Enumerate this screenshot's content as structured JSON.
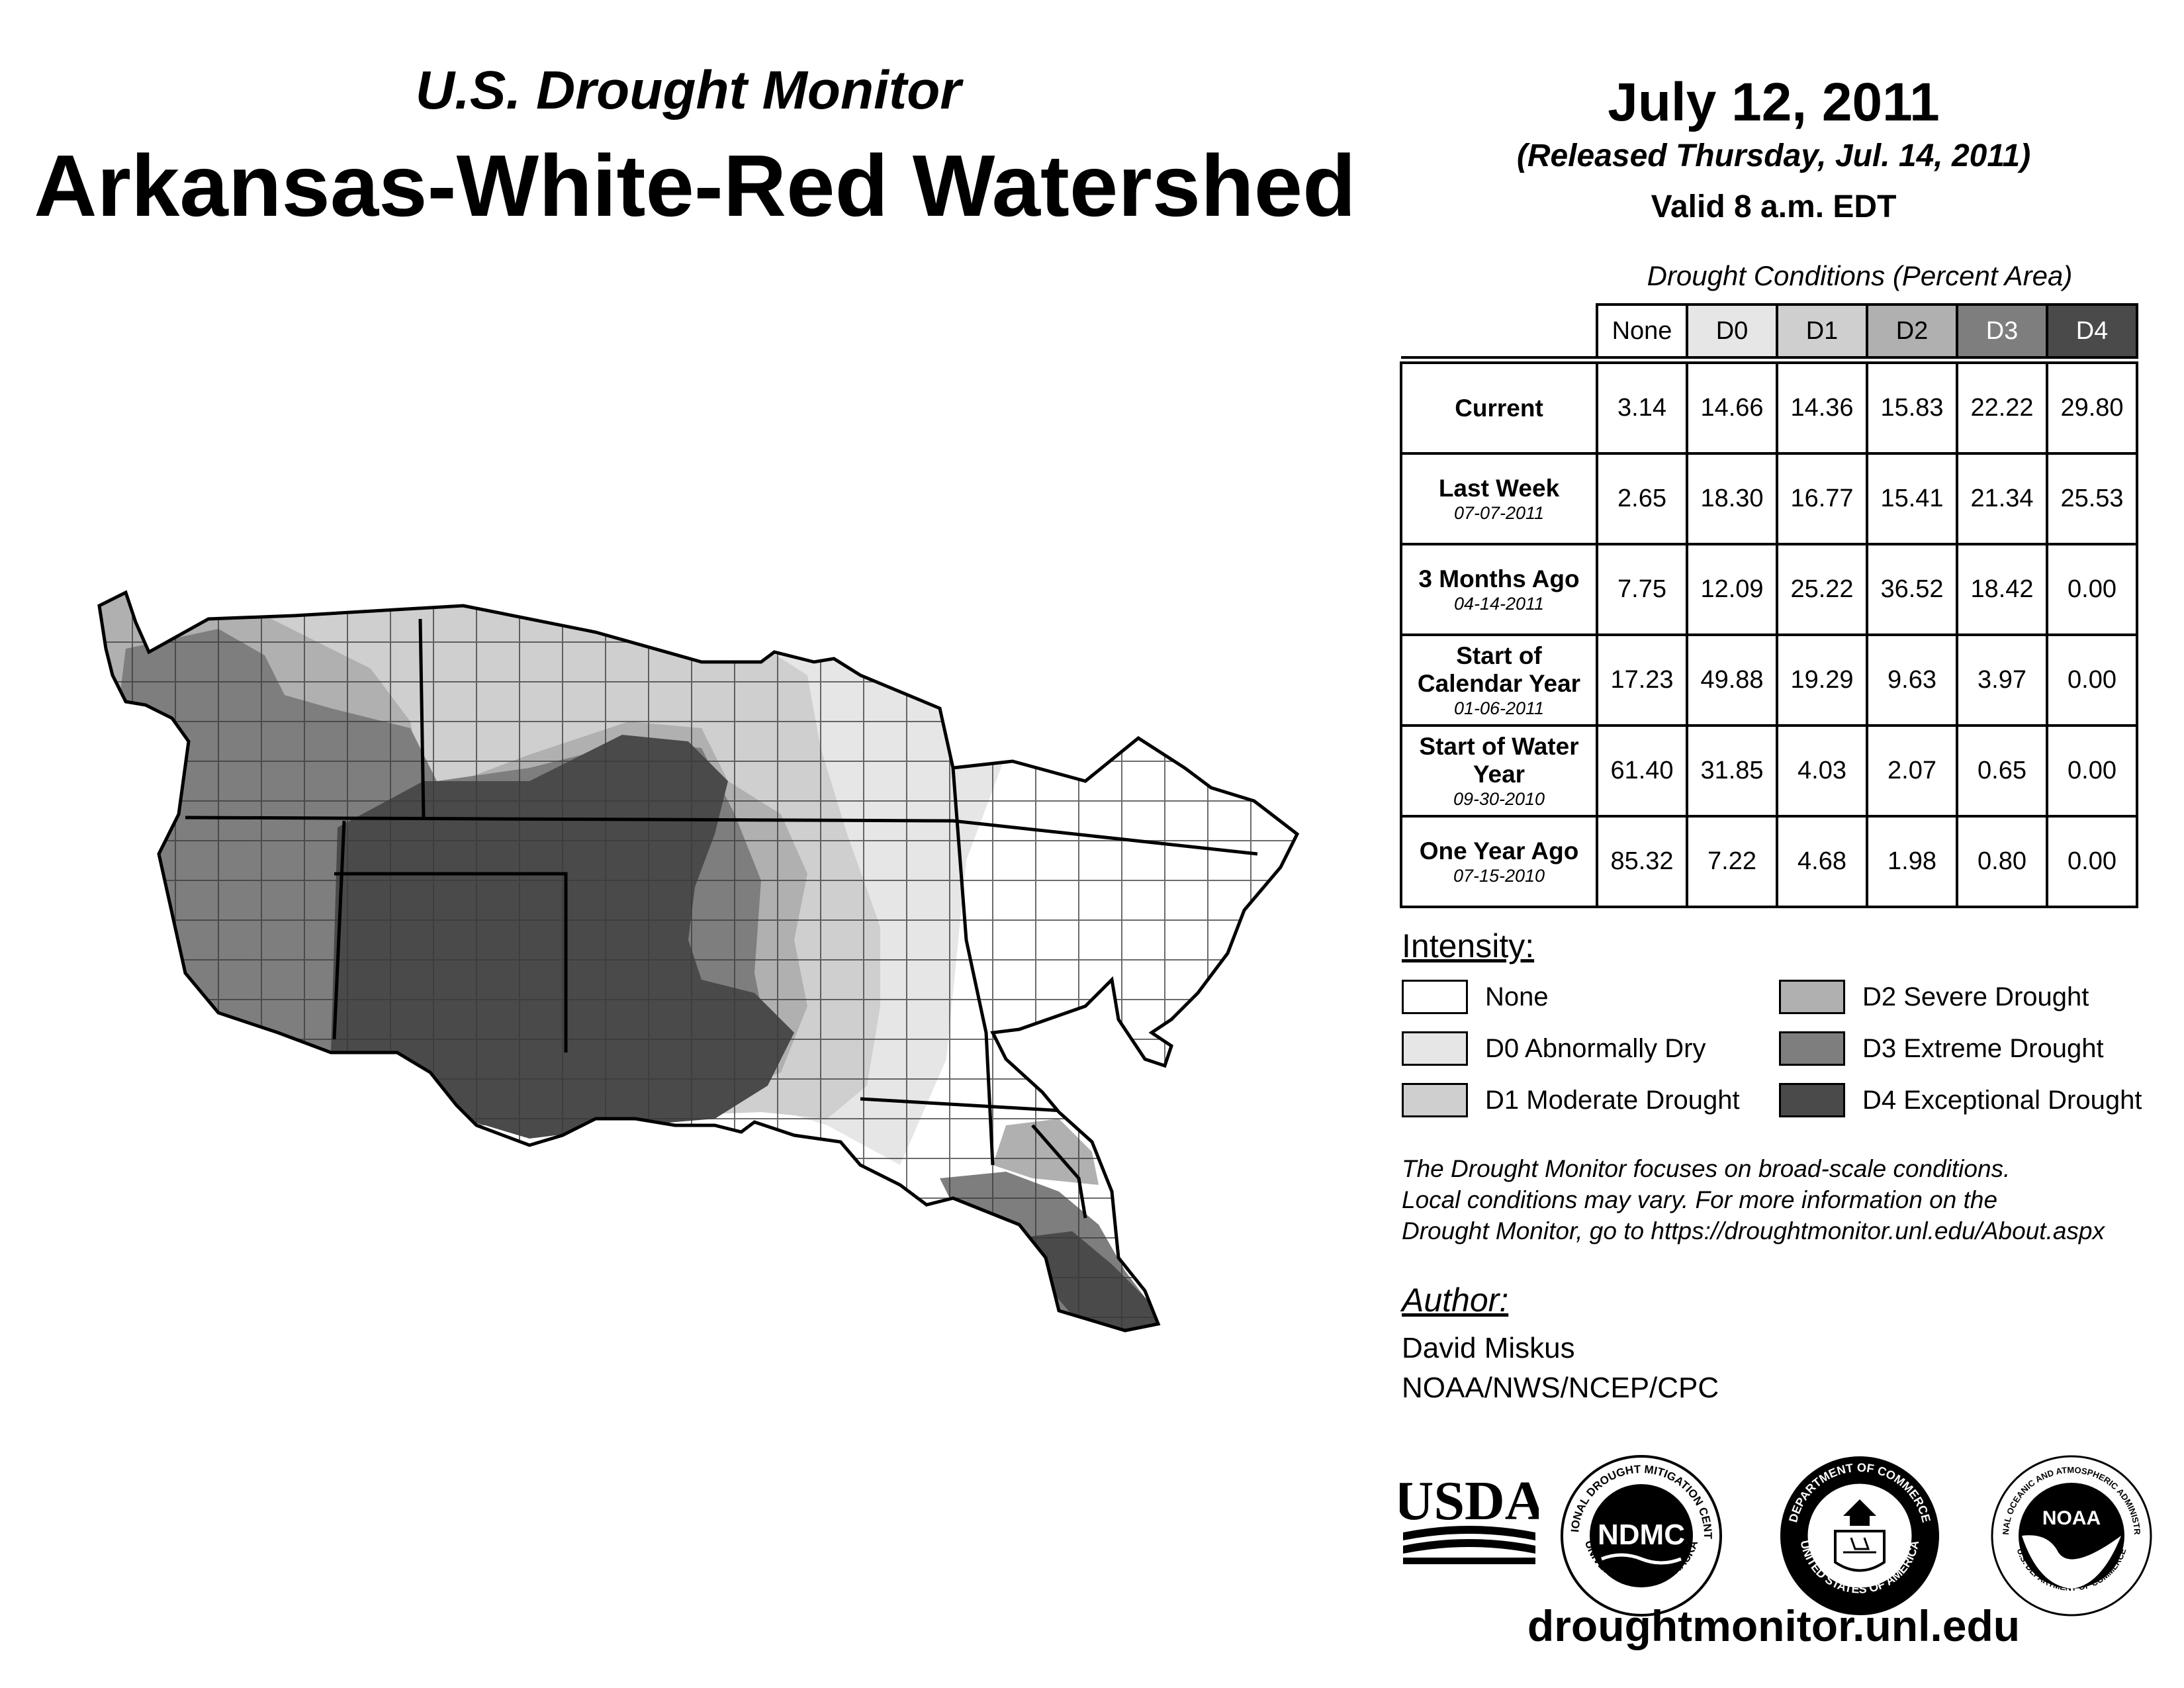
{
  "header": {
    "subtitle": "U.S. Drought Monitor",
    "title": "Arkansas-White-Red Watershed",
    "date": "July 12, 2011",
    "released": "(Released Thursday, Jul. 14, 2011)",
    "valid": "Valid 8 a.m. EDT"
  },
  "table": {
    "caption": "Drought Conditions (Percent Area)",
    "columns": [
      "None",
      "D0",
      "D1",
      "D2",
      "D3",
      "D4"
    ],
    "rows": [
      {
        "label": "Current",
        "date": "",
        "values": [
          "3.14",
          "14.66",
          "14.36",
          "15.83",
          "22.22",
          "29.80"
        ]
      },
      {
        "label": "Last Week",
        "date": "07-07-2011",
        "values": [
          "2.65",
          "18.30",
          "16.77",
          "15.41",
          "21.34",
          "25.53"
        ]
      },
      {
        "label": "3 Months Ago",
        "date": "04-14-2011",
        "values": [
          "7.75",
          "12.09",
          "25.22",
          "36.52",
          "18.42",
          "0.00"
        ]
      },
      {
        "label": "Start of Calendar Year",
        "date": "01-06-2011",
        "values": [
          "17.23",
          "49.88",
          "19.29",
          "9.63",
          "3.97",
          "0.00"
        ]
      },
      {
        "label": "Start of Water Year",
        "date": "09-30-2010",
        "values": [
          "61.40",
          "31.85",
          "4.03",
          "2.07",
          "0.65",
          "0.00"
        ]
      },
      {
        "label": "One Year Ago",
        "date": "07-15-2010",
        "values": [
          "85.32",
          "7.22",
          "4.68",
          "1.98",
          "0.80",
          "0.00"
        ]
      }
    ]
  },
  "legend": {
    "heading": "Intensity:",
    "items": [
      {
        "label": "None",
        "color": "#ffffff"
      },
      {
        "label": "D0 Abnormally Dry",
        "color": "#e6e6e6"
      },
      {
        "label": "D1 Moderate Drought",
        "color": "#cfcfcf"
      },
      {
        "label": "D2 Severe Drought",
        "color": "#b0b0b0"
      },
      {
        "label": "D3 Extreme Drought",
        "color": "#7e7e7e"
      },
      {
        "label": "D4 Exceptional Drought",
        "color": "#4a4a4a"
      }
    ]
  },
  "disclaimer": {
    "line1": "The Drought Monitor focuses on broad-scale conditions.",
    "line2": "Local conditions may vary. For more information on the",
    "line3": "Drought Monitor, go to https://droughtmonitor.unl.edu/About.aspx"
  },
  "author": {
    "heading": "Author:",
    "name": "David Miskus",
    "org": "NOAA/NWS/NCEP/CPC"
  },
  "logos": {
    "usda": "USDA",
    "ndmc": "NDMC",
    "ndmc_ring_top": "NATIONAL DROUGHT MITIGATION CENTER",
    "ndmc_ring_bottom": "UNIVERSITY OF NEBRASKA",
    "doc_ring_top": "DEPARTMENT OF COMMERCE",
    "doc_ring_bottom": "UNITED STATES OF AMERICA",
    "noaa": "NOAA",
    "noaa_ring_top": "NATIONAL OCEANIC AND ATMOSPHERIC ADMINISTRATION",
    "noaa_ring_bottom": "U.S. DEPARTMENT OF COMMERCE"
  },
  "website": "droughtmonitor.unl.edu"
}
